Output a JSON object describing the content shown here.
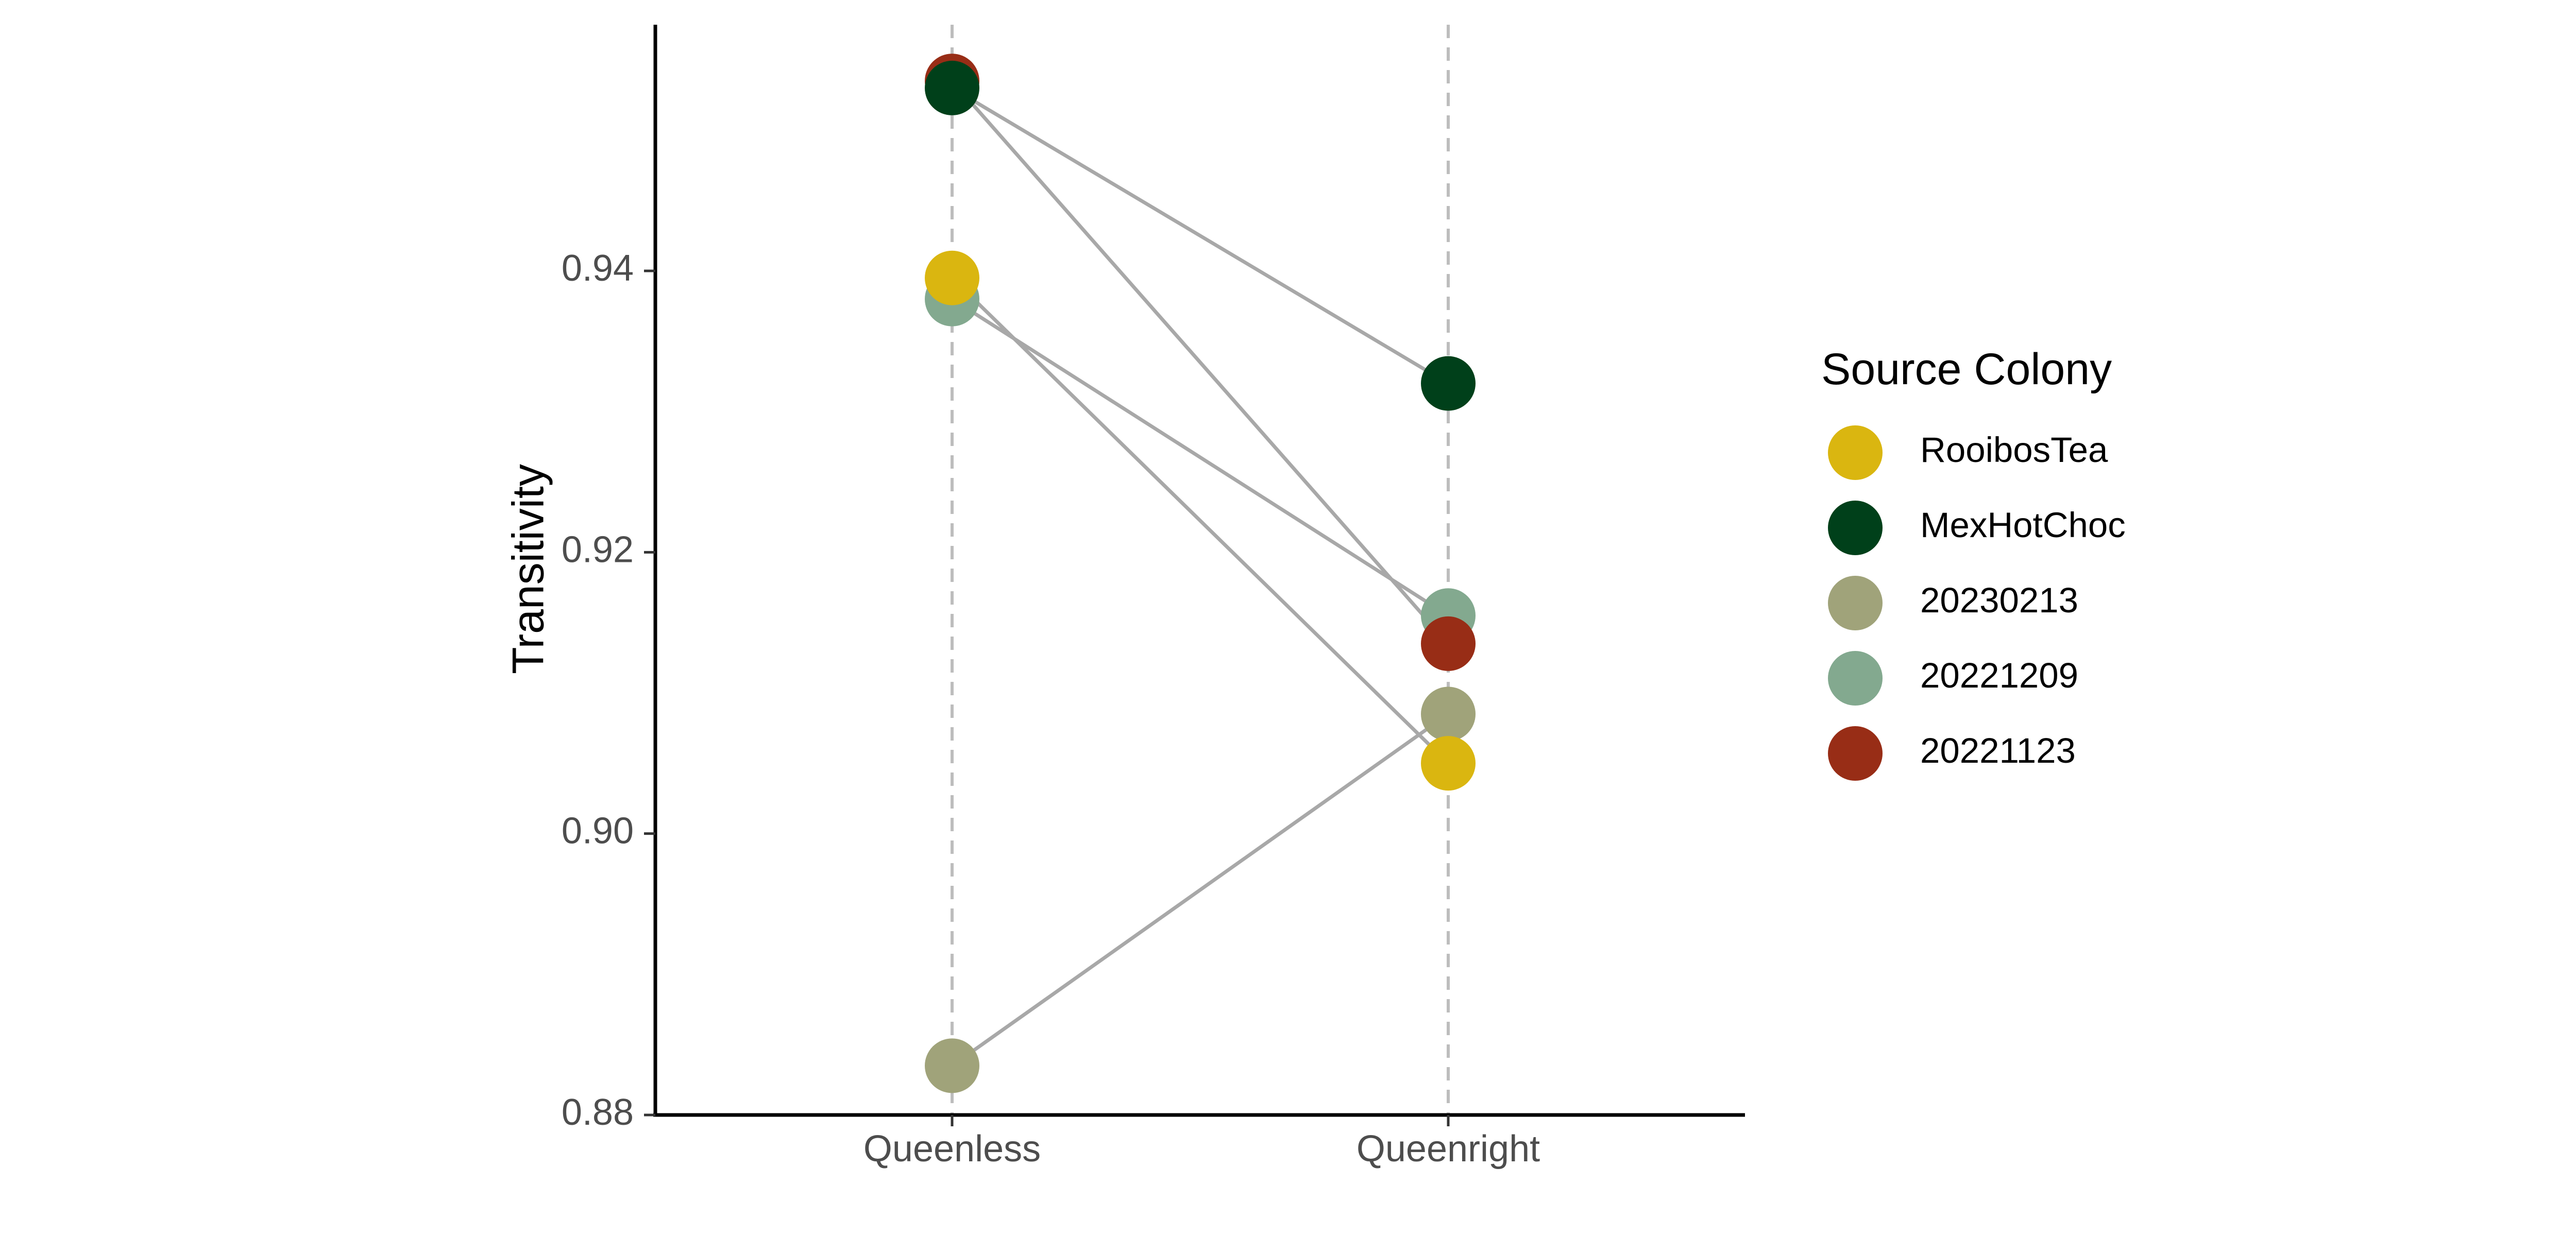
{
  "chart_data": {
    "type": "line",
    "title": "",
    "xlabel": "",
    "ylabel": "Transitivity",
    "categories": [
      "Queenless",
      "Queenright"
    ],
    "ylim": [
      0.88,
      0.9575
    ],
    "yticks": [
      0.88,
      0.9,
      0.92,
      0.94
    ],
    "ytick_labels": [
      "0.88",
      "0.90",
      "0.92",
      "0.94"
    ],
    "grid": false,
    "category_guides": "dashed vertical lines",
    "legend": {
      "title": "Source Colony",
      "position": "right"
    },
    "series": [
      {
        "name": "RooibosTea",
        "color": "#dab610",
        "values": [
          0.9395,
          0.905
        ]
      },
      {
        "name": "MexHotChoc",
        "color": "#00401a",
        "values": [
          0.953,
          0.932
        ]
      },
      {
        "name": "20230213",
        "color": "#a0a37a",
        "values": [
          0.8835,
          0.9085
        ]
      },
      {
        "name": "20221209",
        "color": "#83a98f",
        "values": [
          0.938,
          0.9155
        ]
      },
      {
        "name": "20221123",
        "color": "#982d16",
        "values": [
          0.9535,
          0.9135
        ]
      }
    ],
    "draw_order": [
      "20230213",
      "20221209",
      "RooibosTea",
      "20221123",
      "MexHotChoc"
    ],
    "connector_color": "#a8a8a8"
  }
}
